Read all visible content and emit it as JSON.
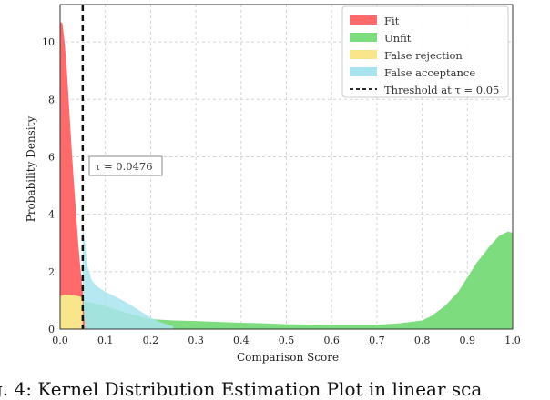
{
  "chart_data": {
    "type": "area",
    "xlabel": "Comparison Score",
    "ylabel": "Probability Density",
    "xlim": [
      0.0,
      1.0
    ],
    "ylim": [
      0,
      11.3
    ],
    "xticks": [
      "0.0",
      "0.1",
      "0.2",
      "0.3",
      "0.4",
      "0.5",
      "0.6",
      "0.7",
      "0.8",
      "0.9",
      "1.0"
    ],
    "yticks": [
      "0",
      "2",
      "4",
      "6",
      "8",
      "10"
    ],
    "grid": true,
    "legend_position": "top-right",
    "threshold": {
      "value": 0.05,
      "label": "Threshold at τ = 0.05"
    },
    "annotation": "τ = 0.0476",
    "series": [
      {
        "name": "Fit",
        "color": "#ff6b6b",
        "x": [
          0.0,
          0.005,
          0.01,
          0.015,
          0.02,
          0.025,
          0.03,
          0.035,
          0.04,
          0.045,
          0.05,
          0.055
        ],
        "y": [
          10.7,
          10.65,
          10.0,
          9.0,
          7.7,
          6.4,
          5.2,
          4.1,
          3.0,
          2.1,
          1.3,
          0.0
        ]
      },
      {
        "name": "Unfit",
        "color": "#7ddc7d",
        "x": [
          0.05,
          0.1,
          0.15,
          0.2,
          0.25,
          0.3,
          0.35,
          0.4,
          0.45,
          0.5,
          0.55,
          0.6,
          0.65,
          0.7,
          0.75,
          0.8,
          0.82,
          0.85,
          0.88,
          0.9,
          0.92,
          0.95,
          0.97,
          0.99,
          1.0
        ],
        "y": [
          1.0,
          0.8,
          0.55,
          0.35,
          0.3,
          0.28,
          0.25,
          0.22,
          0.2,
          0.17,
          0.16,
          0.15,
          0.15,
          0.15,
          0.2,
          0.3,
          0.45,
          0.8,
          1.3,
          1.8,
          2.3,
          2.9,
          3.25,
          3.4,
          3.35
        ]
      },
      {
        "name": "False rejection",
        "color": "#f9e58a",
        "x": [
          0.0,
          0.01,
          0.02,
          0.03,
          0.04,
          0.05
        ],
        "y": [
          1.15,
          1.2,
          1.2,
          1.18,
          1.15,
          1.1
        ]
      },
      {
        "name": "False acceptance",
        "color": "#a8e4ef",
        "x": [
          0.05,
          0.055,
          0.06,
          0.07,
          0.08,
          0.09,
          0.1,
          0.12,
          0.15,
          0.18,
          0.2,
          0.22,
          0.25
        ],
        "y": [
          3.6,
          3.0,
          2.2,
          1.7,
          1.5,
          1.4,
          1.3,
          1.15,
          0.9,
          0.6,
          0.4,
          0.25,
          0.1
        ]
      }
    ]
  },
  "caption": "g. 4: Kernel Distribution Estimation Plot in linear sca"
}
